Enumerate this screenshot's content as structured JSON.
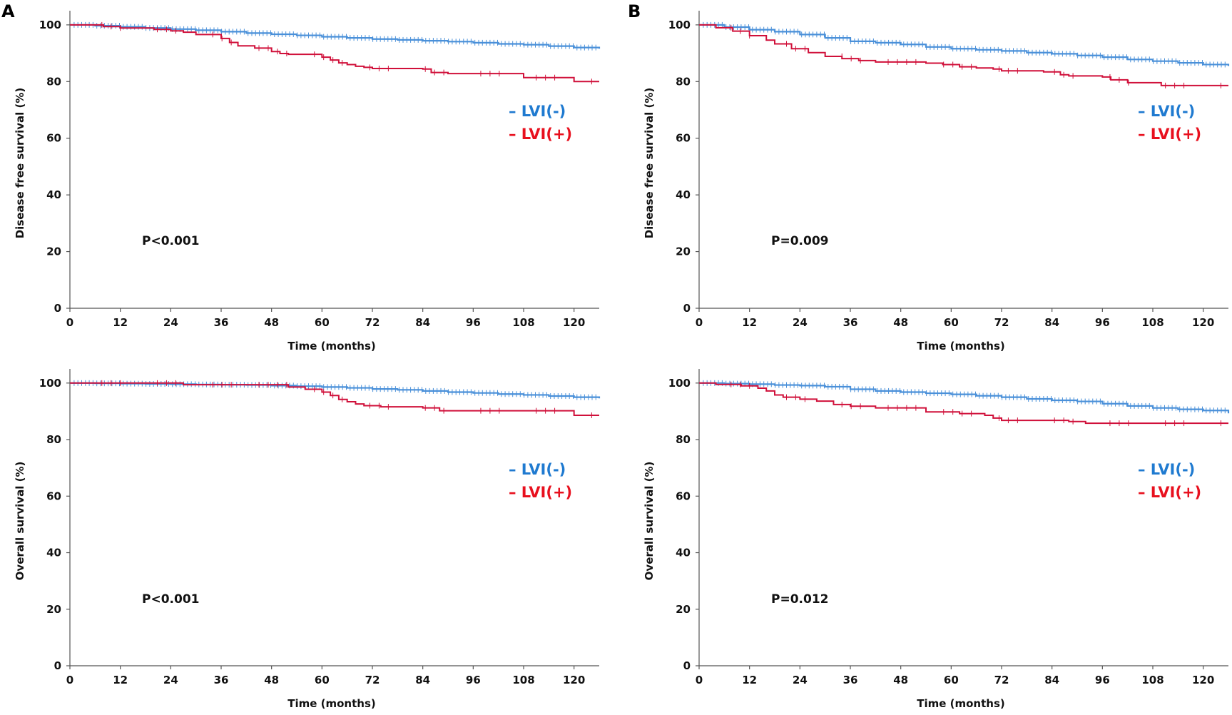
{
  "panel_labels": [
    "A",
    "B"
  ],
  "colors": {
    "lvi_neg": "#4a90d9",
    "lvi_pos": "#d0103a",
    "legend_neg": "#1f7ad0",
    "legend_pos": "#e8101e",
    "axis": "#555555"
  },
  "chart_data": [
    {
      "id": "A-dfs",
      "type": "line",
      "step": true,
      "ylabel": "Disease free survival (%)",
      "xlabel": "Time (months)",
      "xlim": [
        0,
        126
      ],
      "ylim": [
        0,
        105
      ],
      "xticks": [
        0,
        12,
        24,
        36,
        48,
        60,
        72,
        84,
        96,
        108,
        120
      ],
      "yticks": [
        0,
        20,
        40,
        60,
        80,
        100
      ],
      "pvalue": "P<0.001",
      "legend": [
        "LVI(-)",
        "LVI(+)"
      ],
      "series": [
        {
          "name": "LVI(-)",
          "x": [
            0,
            6,
            12,
            18,
            24,
            30,
            36,
            42,
            48,
            54,
            60,
            66,
            72,
            78,
            84,
            90,
            96,
            102,
            108,
            114,
            120,
            126
          ],
          "y": [
            100,
            99.7,
            99.3,
            98.9,
            98.5,
            98.1,
            97.6,
            97.1,
            96.7,
            96.3,
            95.8,
            95.4,
            95.0,
            94.7,
            94.4,
            94.1,
            93.7,
            93.3,
            93.0,
            92.5,
            92.0,
            91.6
          ]
        },
        {
          "name": "LVI(+)",
          "x": [
            0,
            8,
            12,
            20,
            24,
            27,
            30,
            36,
            38,
            40,
            44,
            48,
            50,
            52,
            60,
            62,
            64,
            66,
            68,
            70,
            72,
            76,
            84,
            86,
            90,
            96,
            108,
            112,
            120,
            126
          ],
          "y": [
            100,
            99.4,
            98.9,
            98.4,
            97.9,
            97.4,
            96.6,
            95.2,
            93.8,
            92.6,
            91.8,
            90.6,
            89.9,
            89.6,
            88.6,
            87.6,
            86.6,
            86.0,
            85.4,
            85.0,
            84.6,
            84.6,
            84.4,
            83.2,
            82.8,
            82.8,
            81.4,
            81.4,
            80.0,
            80.0
          ]
        }
      ]
    },
    {
      "id": "B-dfs",
      "type": "line",
      "step": true,
      "ylabel": "Disease free survival (%)",
      "xlabel": "Time (months)",
      "xlim": [
        0,
        126
      ],
      "ylim": [
        0,
        105
      ],
      "xticks": [
        0,
        12,
        24,
        36,
        48,
        60,
        72,
        84,
        96,
        108,
        120
      ],
      "yticks": [
        0,
        20,
        40,
        60,
        80,
        100
      ],
      "pvalue": "P=0.009",
      "legend": [
        "LVI(-)",
        "LVI(+)"
      ],
      "series": [
        {
          "name": "LVI(-)",
          "x": [
            0,
            6,
            12,
            18,
            24,
            30,
            36,
            42,
            48,
            54,
            60,
            66,
            72,
            78,
            84,
            90,
            96,
            102,
            108,
            114,
            120,
            126
          ],
          "y": [
            100,
            99.2,
            98.3,
            97.6,
            96.6,
            95.4,
            94.2,
            93.7,
            93.1,
            92.2,
            91.6,
            91.2,
            90.8,
            90.2,
            89.8,
            89.2,
            88.6,
            87.8,
            87.2,
            86.6,
            86.0,
            85.5
          ]
        },
        {
          "name": "LVI(+)",
          "x": [
            0,
            4,
            8,
            12,
            16,
            18,
            22,
            26,
            30,
            34,
            38,
            42,
            54,
            58,
            62,
            66,
            70,
            72,
            82,
            86,
            88,
            96,
            98,
            102,
            110,
            126
          ],
          "y": [
            100,
            99.0,
            97.8,
            96.2,
            94.6,
            93.3,
            91.6,
            90.2,
            88.9,
            88.1,
            87.4,
            86.9,
            86.5,
            86.0,
            85.2,
            84.8,
            84.4,
            83.8,
            83.4,
            82.4,
            82.0,
            81.6,
            80.6,
            79.6,
            78.6,
            78.6
          ]
        }
      ]
    },
    {
      "id": "A-os",
      "type": "line",
      "step": true,
      "ylabel": "Overall survival (%)",
      "xlabel": "Time (months)",
      "xlim": [
        0,
        126
      ],
      "ylim": [
        0,
        105
      ],
      "xticks": [
        0,
        12,
        24,
        36,
        48,
        60,
        72,
        84,
        96,
        108,
        120
      ],
      "yticks": [
        0,
        20,
        40,
        60,
        80,
        100
      ],
      "pvalue": "P<0.001",
      "legend": [
        "LVI(-)",
        "LVI(+)"
      ],
      "series": [
        {
          "name": "LVI(-)",
          "x": [
            0,
            6,
            12,
            18,
            24,
            30,
            36,
            42,
            48,
            54,
            60,
            66,
            72,
            78,
            84,
            90,
            96,
            102,
            108,
            114,
            120,
            126
          ],
          "y": [
            100,
            99.9,
            99.8,
            99.7,
            99.6,
            99.5,
            99.4,
            99.3,
            99.1,
            98.9,
            98.6,
            98.3,
            97.9,
            97.6,
            97.2,
            96.8,
            96.5,
            96.1,
            95.8,
            95.4,
            95.0,
            94.6
          ]
        },
        {
          "name": "LVI(+)",
          "x": [
            0,
            27,
            48,
            52,
            56,
            60,
            62,
            64,
            66,
            68,
            70,
            74,
            84,
            88,
            120,
            126
          ],
          "y": [
            100,
            99.4,
            99.4,
            98.6,
            97.8,
            96.8,
            95.6,
            94.2,
            93.4,
            92.6,
            92.0,
            91.6,
            91.2,
            90.2,
            88.6,
            88.6
          ]
        }
      ]
    },
    {
      "id": "B-os",
      "type": "line",
      "step": true,
      "ylabel": "Overall survival (%)",
      "xlabel": "Time (months)",
      "xlim": [
        0,
        126
      ],
      "ylim": [
        0,
        105
      ],
      "xticks": [
        0,
        12,
        24,
        36,
        48,
        60,
        72,
        84,
        96,
        108,
        120
      ],
      "yticks": [
        0,
        20,
        40,
        60,
        80,
        100
      ],
      "pvalue": "P=0.012",
      "legend": [
        "LVI(-)",
        "LVI(+)"
      ],
      "series": [
        {
          "name": "LVI(-)",
          "x": [
            0,
            6,
            12,
            18,
            24,
            30,
            36,
            42,
            48,
            54,
            60,
            66,
            72,
            78,
            84,
            90,
            96,
            102,
            108,
            114,
            120,
            126
          ],
          "y": [
            100,
            99.8,
            99.6,
            99.3,
            99.1,
            98.7,
            97.8,
            97.2,
            96.8,
            96.4,
            96.0,
            95.5,
            95.0,
            94.4,
            93.9,
            93.5,
            92.7,
            91.9,
            91.2,
            90.7,
            90.3,
            89.3
          ]
        },
        {
          "name": "LVI(+)",
          "x": [
            0,
            4,
            10,
            14,
            16,
            18,
            20,
            24,
            28,
            32,
            36,
            42,
            54,
            62,
            68,
            70,
            72,
            88,
            92,
            126
          ],
          "y": [
            100,
            99.5,
            99.0,
            98.2,
            97.2,
            95.8,
            95.0,
            94.3,
            93.6,
            92.4,
            91.8,
            91.2,
            89.8,
            89.2,
            88.6,
            87.6,
            86.8,
            86.4,
            85.8,
            85.8
          ]
        }
      ]
    }
  ]
}
